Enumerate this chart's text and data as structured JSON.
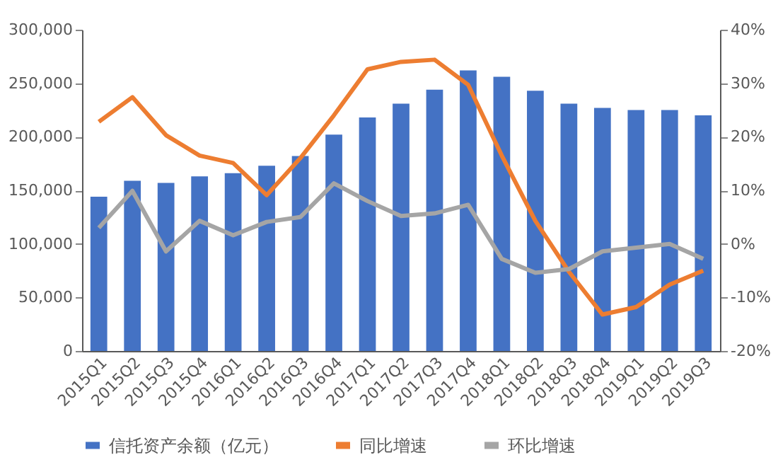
{
  "chart_data": {
    "type": "bar",
    "categories": [
      "2015Q1",
      "2015Q2",
      "2015Q3",
      "2015Q4",
      "2016Q1",
      "2016Q2",
      "2016Q3",
      "2016Q4",
      "2017Q1",
      "2017Q2",
      "2017Q3",
      "2017Q4",
      "2018Q1",
      "2018Q2",
      "2018Q3",
      "2018Q4",
      "2019Q1",
      "2019Q2",
      "2019Q3"
    ],
    "series": [
      {
        "name": "信托资产余额（亿元）",
        "color": "#4472c4",
        "values": [
          144000,
          159000,
          157000,
          163000,
          166000,
          173000,
          182000,
          202000,
          218000,
          231000,
          244000,
          262000,
          256000,
          243000,
          231000,
          227000,
          225000,
          225000,
          220000
        ]
      },
      {
        "name": "同比增速",
        "type": "line",
        "axis": "y2",
        "color": "#ed7d31",
        "values": [
          22.8,
          27.4,
          20.3,
          16.5,
          15.1,
          9.1,
          16.0,
          24.0,
          32.6,
          34.0,
          34.4,
          29.7,
          16.5,
          4.3,
          -5.2,
          -13.2,
          -11.8,
          -7.6,
          -5.0
        ]
      },
      {
        "name": "环比增速",
        "type": "line",
        "axis": "y2",
        "color": "#a5a5a5",
        "values": [
          3.0,
          9.9,
          -1.4,
          4.3,
          1.6,
          4.1,
          5.0,
          11.3,
          8.0,
          5.2,
          5.7,
          7.3,
          -2.8,
          -5.4,
          -4.7,
          -1.4,
          -0.7,
          0.0,
          -2.8
        ]
      }
    ],
    "ylim": [
      0,
      300000
    ],
    "yticks": [
      0,
      {
        "value": 50000,
        "label": "50,000"
      },
      {
        "value": 100000,
        "label": "100,000"
      },
      {
        "value": 150000,
        "label": "150,000"
      },
      {
        "value": 200000,
        "label": "200,000"
      },
      {
        "value": 250000,
        "label": "250,000"
      },
      {
        "value": 300000,
        "label": "300,000"
      }
    ],
    "y2lim": [
      -20,
      40
    ],
    "y2ticks": [
      {
        "value": -20,
        "label": "-20%"
      },
      {
        "value": -10,
        "label": "-10%"
      },
      {
        "value": 0,
        "label": "0%"
      },
      {
        "value": 10,
        "label": "10%"
      },
      {
        "value": 20,
        "label": "20%"
      },
      {
        "value": 30,
        "label": "30%"
      },
      {
        "value": 40,
        "label": "40%"
      }
    ],
    "grid": false,
    "legend": "bottom",
    "line_style": "solid",
    "marker": "none"
  }
}
